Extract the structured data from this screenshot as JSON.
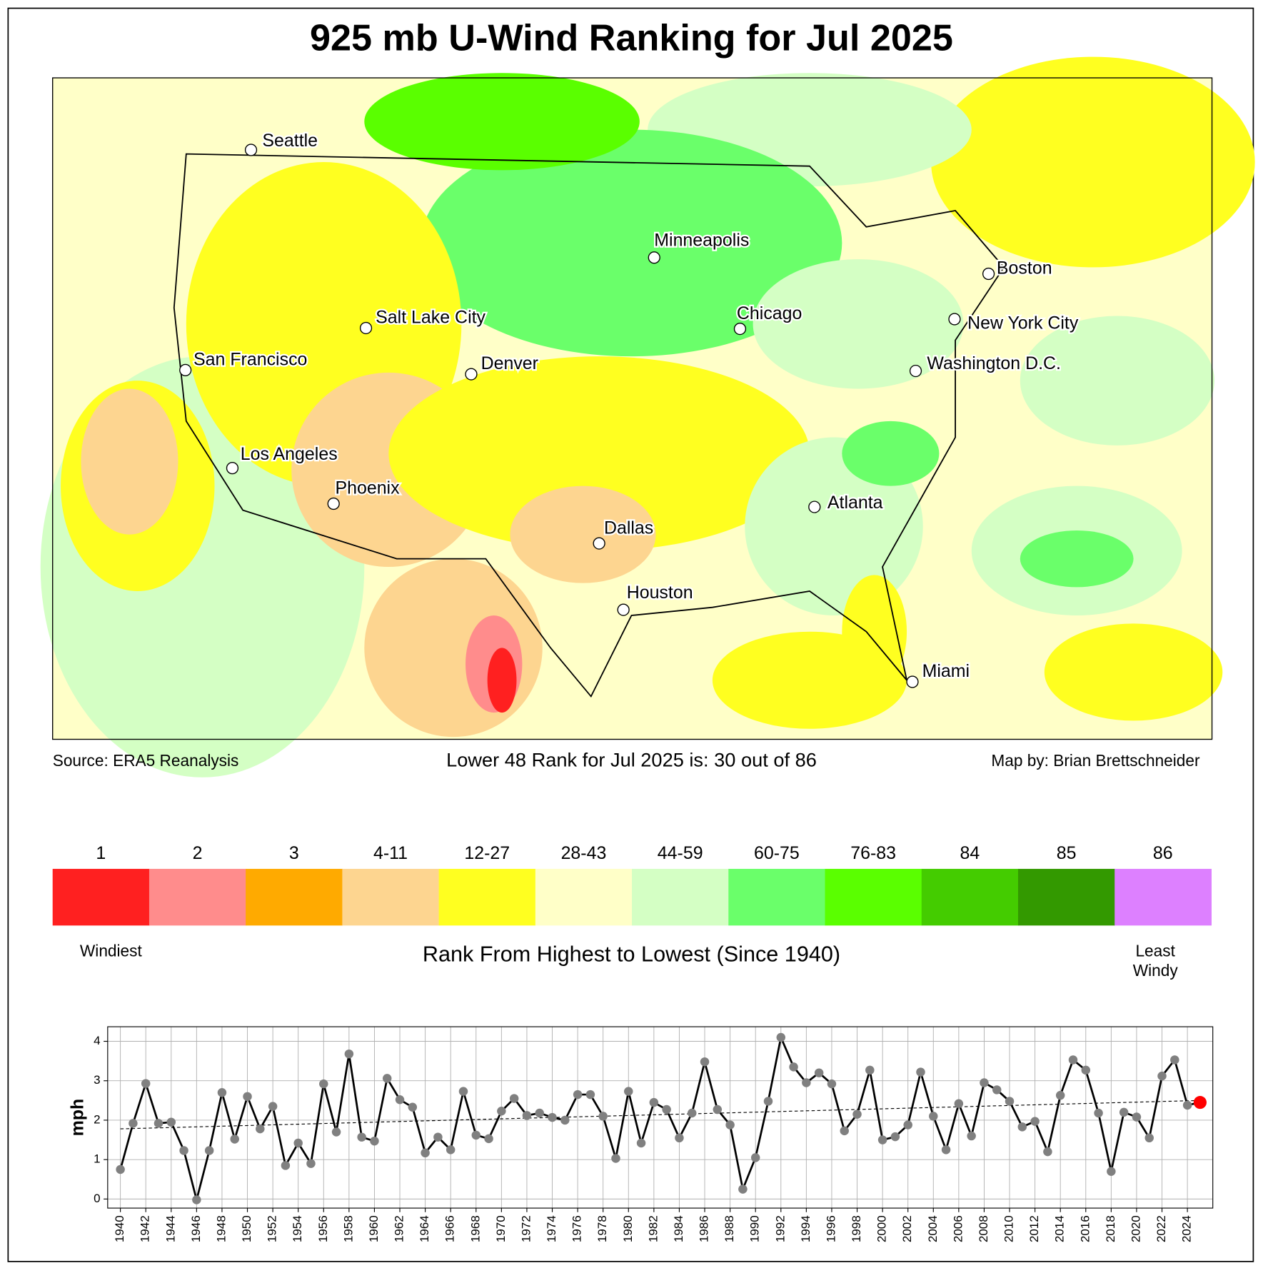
{
  "title": "925 mb U-Wind Ranking for Jul 2025",
  "map": {
    "cities": [
      "Seattle",
      "Minneapolis",
      "Boston",
      "Salt Lake City",
      "Chicago",
      "New York City",
      "San Francisco",
      "Denver",
      "Washington D.C.",
      "Los Angeles",
      "Phoenix",
      "Atlanta",
      "Dallas",
      "Houston",
      "Miami"
    ],
    "source": "Source: ERA5 Reanalysis",
    "rank_text": "Lower 48 Rank for Jul 2025 is: 30 out of 86",
    "credit": "Map by: Brian Brettschneider"
  },
  "colorbar": {
    "labels": [
      "1",
      "2",
      "3",
      "4-11",
      "12-27",
      "28-43",
      "44-59",
      "60-75",
      "76-83",
      "84",
      "85",
      "86"
    ],
    "colors": [
      "#ff2020",
      "#ff8c8c",
      "#ffaa00",
      "#fdd590",
      "#ffff20",
      "#ffffc8",
      "#d4ffc4",
      "#6aff6a",
      "#5aff00",
      "#44cc00",
      "#339900",
      "#dd80ff"
    ],
    "low_label": "Windiest",
    "high_label": "Least\nWindy",
    "caption": "Rank From Highest to Lowest (Since 1940)"
  },
  "chart_data": {
    "type": "line",
    "y_label": "mph",
    "x": [
      1940,
      1941,
      1942,
      1943,
      1944,
      1945,
      1946,
      1947,
      1948,
      1949,
      1950,
      1951,
      1952,
      1953,
      1954,
      1955,
      1956,
      1957,
      1958,
      1959,
      1960,
      1961,
      1962,
      1963,
      1964,
      1965,
      1966,
      1967,
      1968,
      1969,
      1970,
      1971,
      1972,
      1973,
      1974,
      1975,
      1976,
      1977,
      1978,
      1979,
      1980,
      1981,
      1982,
      1983,
      1984,
      1985,
      1986,
      1987,
      1988,
      1989,
      1990,
      1991,
      1992,
      1993,
      1994,
      1995,
      1996,
      1997,
      1998,
      1999,
      2000,
      2001,
      2002,
      2003,
      2004,
      2005,
      2006,
      2007,
      2008,
      2009,
      2010,
      2011,
      2012,
      2013,
      2014,
      2015,
      2016,
      2017,
      2018,
      2019,
      2020,
      2021,
      2022,
      2023,
      2024,
      2025
    ],
    "values": [
      0.75,
      1.92,
      2.93,
      1.92,
      1.95,
      1.23,
      -0.02,
      1.23,
      2.7,
      1.52,
      2.6,
      1.78,
      2.35,
      0.85,
      1.42,
      0.9,
      2.92,
      1.7,
      3.68,
      1.57,
      1.47,
      3.06,
      2.52,
      2.33,
      1.17,
      1.57,
      1.25,
      2.73,
      1.62,
      1.53,
      2.23,
      2.55,
      2.12,
      2.18,
      2.07,
      2.0,
      2.65,
      2.65,
      2.1,
      1.03,
      2.73,
      1.42,
      2.45,
      2.27,
      1.55,
      2.18,
      3.48,
      2.27,
      1.88,
      0.25,
      1.05,
      2.48,
      4.1,
      3.35,
      2.95,
      3.2,
      2.92,
      1.73,
      2.15,
      3.27,
      1.5,
      1.58,
      1.88,
      3.22,
      2.1,
      1.25,
      2.42,
      1.6,
      2.95,
      2.77,
      2.48,
      1.83,
      1.97,
      1.2,
      2.63,
      3.53,
      3.27,
      2.18,
      0.7,
      2.2,
      2.08,
      1.55,
      3.12,
      3.53,
      2.38,
      2.45
    ],
    "trend": [
      1.78,
      2.5
    ],
    "line_color": "#000000",
    "marker_color": "#808080",
    "highlight_color": "#ff0000",
    "xlim": [
      1939,
      2026
    ],
    "ylim": [
      -0.23,
      4.37
    ],
    "xticks": [
      1940,
      1942,
      1944,
      1946,
      1948,
      1950,
      1952,
      1954,
      1956,
      1958,
      1960,
      1962,
      1964,
      1966,
      1968,
      1970,
      1972,
      1974,
      1976,
      1978,
      1980,
      1982,
      1984,
      1986,
      1988,
      1990,
      1992,
      1994,
      1996,
      1998,
      2000,
      2002,
      2004,
      2006,
      2008,
      2010,
      2012,
      2014,
      2016,
      2018,
      2020,
      2022,
      2024
    ],
    "yticks": [
      0,
      1,
      2,
      3,
      4
    ],
    "grid": true
  }
}
